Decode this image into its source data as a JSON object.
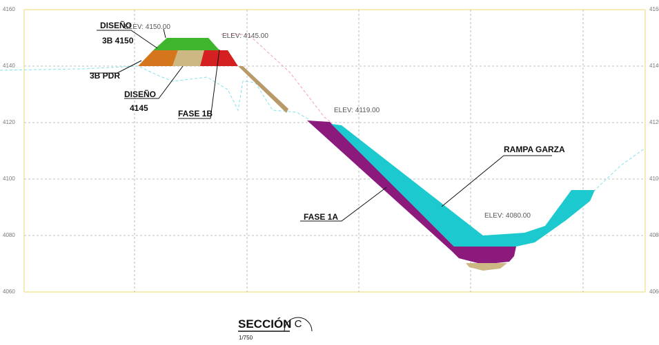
{
  "elevations": [
    "4160",
    "4140",
    "4120",
    "4100",
    "4080",
    "4060"
  ],
  "labels": {
    "diseno_3b_4150": [
      "DISEÑO",
      "3B 4150"
    ],
    "pdr": "3B PDR",
    "diseno_4145": [
      "DISEÑO",
      "4145"
    ],
    "fase_1b": "FASE 1B",
    "fase_1a": "FASE 1A",
    "rampa": "RAMPA GARZA"
  },
  "elev_marks": [
    "ELEV: 4150.00",
    "ELEV: 4145.00",
    "ELEV: 4119.00",
    "ELEV: 4080.00"
  ],
  "section": {
    "title": "SECCIÓN",
    "id": "C",
    "scale": "1/750"
  }
}
